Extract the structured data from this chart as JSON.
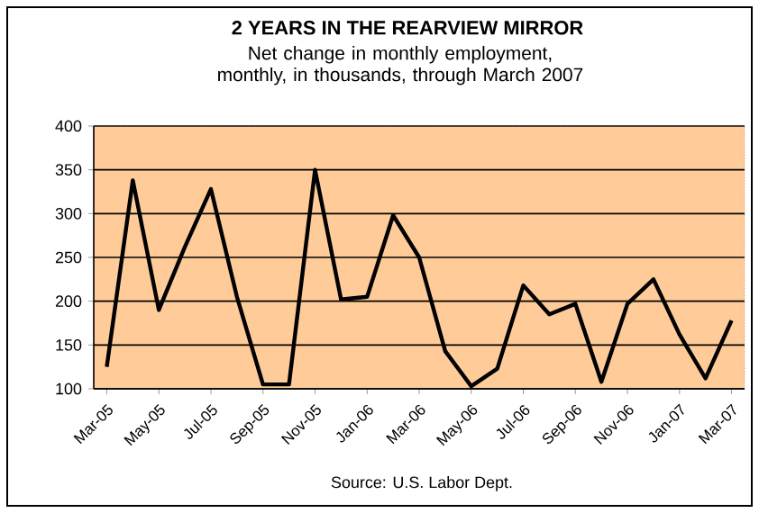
{
  "chart_data": {
    "type": "line",
    "title": "2 YEARS IN THE REARVIEW MIRROR",
    "subtitle": "Net change in monthly employment, monthly, in thousands, through March 2007",
    "categories": [
      "Mar-05",
      null,
      "May-05",
      null,
      "Jul-05",
      null,
      "Sep-05",
      null,
      "Nov-05",
      null,
      "Jan-06",
      null,
      "Mar-06",
      null,
      "May-06",
      null,
      "Jul-06",
      null,
      "Sep-06",
      null,
      "Nov-06",
      null,
      "Jan-07",
      null,
      "Mar-07"
    ],
    "values": [
      125,
      338,
      190,
      262,
      328,
      205,
      105,
      105,
      350,
      202,
      205,
      298,
      250,
      143,
      103,
      123,
      218,
      185,
      197,
      108,
      197,
      225,
      162,
      112,
      178
    ],
    "color": "#000000",
    "ylim": [
      100,
      400
    ],
    "yticks": [
      100,
      150,
      200,
      250,
      300,
      350,
      400
    ],
    "grid": "y",
    "marker": "none",
    "line_style": "solid",
    "annotations": [
      "Source: U.S. Labor Dept."
    ]
  }
}
